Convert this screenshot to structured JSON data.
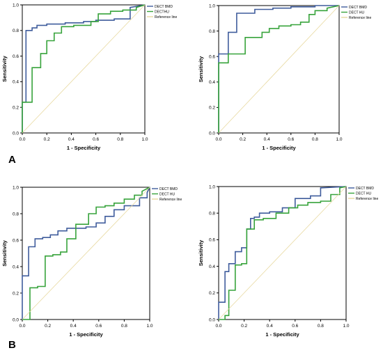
{
  "figure": {
    "panel_labels": [
      "A",
      "B"
    ]
  },
  "colors": {
    "bmd": "#3f5c9c",
    "hu": "#37a33b",
    "reference": "#e8d9a0",
    "axis": "#000000"
  },
  "chart_data": [
    {
      "type": "line",
      "xlabel": "1 - Specificity",
      "ylabel": "Sensitivity",
      "xlim": [
        0,
        1
      ],
      "ylim": [
        0,
        1
      ],
      "xticks": [
        "0.0",
        "0.2",
        "0.4",
        "0.6",
        "0.8",
        "1.0"
      ],
      "yticks": [
        "0.0",
        "0.2",
        "0.4",
        "0.6",
        "0.8",
        "1.0"
      ],
      "grid": false,
      "legend_position": "top-right",
      "series": [
        {
          "name": "DECT BMD",
          "color_key": "bmd",
          "x": [
            0,
            0,
            0.03,
            0.03,
            0.08,
            0.08,
            0.12,
            0.12,
            0.2,
            0.2,
            0.35,
            0.35,
            0.5,
            0.5,
            0.6,
            0.6,
            0.75,
            0.75,
            0.88,
            0.88,
            1
          ],
          "y": [
            0,
            0.24,
            0.24,
            0.8,
            0.8,
            0.82,
            0.82,
            0.84,
            0.84,
            0.85,
            0.85,
            0.86,
            0.86,
            0.87,
            0.87,
            0.88,
            0.88,
            0.89,
            0.89,
            0.98,
            1
          ]
        },
        {
          "name": "DECTHU",
          "color_key": "hu",
          "x": [
            0,
            0,
            0.08,
            0.08,
            0.15,
            0.15,
            0.2,
            0.2,
            0.26,
            0.26,
            0.32,
            0.32,
            0.42,
            0.42,
            0.56,
            0.56,
            0.62,
            0.62,
            0.72,
            0.72,
            0.82,
            0.82,
            0.93,
            0.93,
            1
          ],
          "y": [
            0,
            0.24,
            0.24,
            0.51,
            0.51,
            0.62,
            0.62,
            0.72,
            0.72,
            0.78,
            0.78,
            0.83,
            0.83,
            0.84,
            0.84,
            0.87,
            0.87,
            0.93,
            0.93,
            0.95,
            0.95,
            0.96,
            0.96,
            0.98,
            1
          ]
        },
        {
          "name": "Reference line",
          "color_key": "reference",
          "x": [
            0,
            1
          ],
          "y": [
            0,
            1
          ]
        }
      ]
    },
    {
      "type": "line",
      "xlabel": "1 - Specificity",
      "ylabel": "Sensitivity",
      "xlim": [
        0,
        1
      ],
      "ylim": [
        0,
        1
      ],
      "xticks": [
        "0.0",
        "0.2",
        "0.4",
        "0.6",
        "0.8",
        "1.0"
      ],
      "yticks": [
        "0.0",
        "0.2",
        "0.4",
        "0.6",
        "0.8",
        "1.0"
      ],
      "grid": false,
      "legend_position": "top-right",
      "series": [
        {
          "name": "DECT BMD",
          "color_key": "bmd",
          "x": [
            0,
            0,
            0.08,
            0.08,
            0.15,
            0.15,
            0.3,
            0.3,
            0.45,
            0.45,
            0.6,
            0.6,
            0.8,
            0.8,
            1
          ],
          "y": [
            0,
            0.62,
            0.62,
            0.79,
            0.79,
            0.94,
            0.94,
            0.97,
            0.97,
            0.98,
            0.98,
            0.99,
            0.99,
            1,
            1
          ]
        },
        {
          "name": "DECT HU",
          "color_key": "hu",
          "x": [
            0,
            0,
            0.08,
            0.08,
            0.22,
            0.22,
            0.36,
            0.36,
            0.42,
            0.42,
            0.5,
            0.5,
            0.6,
            0.6,
            0.68,
            0.68,
            0.75,
            0.75,
            0.8,
            0.8,
            0.9,
            0.9,
            1
          ],
          "y": [
            0,
            0.55,
            0.55,
            0.62,
            0.62,
            0.75,
            0.75,
            0.79,
            0.79,
            0.82,
            0.82,
            0.84,
            0.84,
            0.85,
            0.85,
            0.87,
            0.87,
            0.93,
            0.93,
            0.96,
            0.96,
            0.98,
            1
          ]
        },
        {
          "name": "Reference line",
          "color_key": "reference",
          "x": [
            0,
            1
          ],
          "y": [
            0,
            1
          ]
        }
      ]
    },
    {
      "type": "line",
      "xlabel": "1 - Specificity",
      "ylabel": "Sensitivity",
      "xlim": [
        0,
        1
      ],
      "ylim": [
        0,
        1
      ],
      "xticks": [
        "0.0",
        "0.2",
        "0.4",
        "0.6",
        "0.8",
        "1.0"
      ],
      "yticks": [
        "0.0",
        "0.2",
        "0.4",
        "0.6",
        "0.8",
        "1.0"
      ],
      "grid": false,
      "legend_position": "top-right",
      "series": [
        {
          "name": "DECT BMD",
          "color_key": "bmd",
          "x": [
            0,
            0,
            0.05,
            0.05,
            0.1,
            0.1,
            0.16,
            0.16,
            0.22,
            0.22,
            0.28,
            0.28,
            0.35,
            0.35,
            0.5,
            0.5,
            0.58,
            0.58,
            0.65,
            0.65,
            0.72,
            0.72,
            0.8,
            0.8,
            0.92,
            0.92,
            0.98,
            0.98,
            1
          ],
          "y": [
            0,
            0.33,
            0.33,
            0.55,
            0.55,
            0.61,
            0.61,
            0.62,
            0.62,
            0.64,
            0.64,
            0.67,
            0.67,
            0.69,
            0.69,
            0.7,
            0.7,
            0.73,
            0.73,
            0.78,
            0.78,
            0.83,
            0.83,
            0.86,
            0.86,
            0.92,
            0.92,
            0.96,
            1
          ]
        },
        {
          "name": "DECT HU",
          "color_key": "hu",
          "x": [
            0,
            0.06,
            0.06,
            0.12,
            0.12,
            0.18,
            0.18,
            0.24,
            0.24,
            0.3,
            0.3,
            0.35,
            0.35,
            0.42,
            0.42,
            0.52,
            0.52,
            0.58,
            0.58,
            0.65,
            0.65,
            0.72,
            0.72,
            0.8,
            0.8,
            0.88,
            0.88,
            0.94,
            0.94,
            1
          ],
          "y": [
            0,
            0,
            0.24,
            0.24,
            0.25,
            0.25,
            0.48,
            0.48,
            0.49,
            0.49,
            0.51,
            0.51,
            0.61,
            0.61,
            0.72,
            0.72,
            0.8,
            0.8,
            0.85,
            0.85,
            0.86,
            0.86,
            0.88,
            0.88,
            0.91,
            0.91,
            0.94,
            0.94,
            0.97,
            1
          ]
        },
        {
          "name": "Reference line",
          "color_key": "reference",
          "x": [
            0,
            1
          ],
          "y": [
            0,
            1
          ]
        }
      ]
    },
    {
      "type": "line",
      "xlabel": "1 - Specificity",
      "ylabel": "Sensitivity",
      "xlim": [
        0,
        1
      ],
      "ylim": [
        0,
        1
      ],
      "xticks": [
        "0.0",
        "0.2",
        "0.4",
        "0.6",
        "0.8",
        "1.0"
      ],
      "yticks": [
        "0.0",
        "0.2",
        "0.4",
        "0.6",
        "0.8",
        "1.0"
      ],
      "grid": false,
      "legend_position": "top-right",
      "series": [
        {
          "name": "DECT BMD",
          "color_key": "bmd",
          "x": [
            0,
            0,
            0.05,
            0.05,
            0.08,
            0.08,
            0.13,
            0.13,
            0.18,
            0.18,
            0.22,
            0.22,
            0.25,
            0.25,
            0.28,
            0.28,
            0.32,
            0.32,
            0.4,
            0.4,
            0.5,
            0.5,
            0.6,
            0.6,
            0.72,
            0.72,
            0.8,
            0.8,
            1
          ],
          "y": [
            0,
            0.13,
            0.13,
            0.36,
            0.36,
            0.42,
            0.42,
            0.51,
            0.51,
            0.54,
            0.54,
            0.68,
            0.68,
            0.76,
            0.76,
            0.77,
            0.77,
            0.8,
            0.8,
            0.81,
            0.81,
            0.84,
            0.84,
            0.91,
            0.91,
            0.93,
            0.93,
            0.99,
            1
          ]
        },
        {
          "name": "DECT HU",
          "color_key": "hu",
          "x": [
            0,
            0.05,
            0.05,
            0.08,
            0.08,
            0.13,
            0.13,
            0.18,
            0.18,
            0.22,
            0.22,
            0.28,
            0.28,
            0.35,
            0.35,
            0.45,
            0.45,
            0.55,
            0.55,
            0.62,
            0.62,
            0.7,
            0.7,
            0.8,
            0.8,
            0.88,
            0.88,
            0.95,
            0.95,
            1
          ],
          "y": [
            0,
            0,
            0.03,
            0.03,
            0.22,
            0.22,
            0.41,
            0.41,
            0.42,
            0.42,
            0.68,
            0.68,
            0.75,
            0.75,
            0.76,
            0.76,
            0.8,
            0.8,
            0.84,
            0.84,
            0.86,
            0.86,
            0.88,
            0.88,
            0.89,
            0.89,
            0.94,
            0.94,
            0.99,
            1
          ]
        },
        {
          "name": "Reference line",
          "color_key": "reference",
          "x": [
            0,
            1
          ],
          "y": [
            0,
            1
          ]
        }
      ]
    }
  ]
}
